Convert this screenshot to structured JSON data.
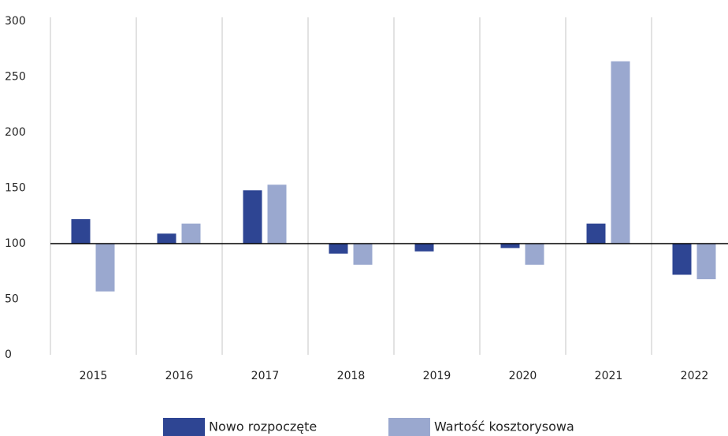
{
  "chart_data": {
    "type": "bar",
    "categories": [
      "2015",
      "2016",
      "2017",
      "2018",
      "2019",
      "2020",
      "2021",
      "2022"
    ],
    "series": [
      {
        "name": "Nowo rozpoczęte",
        "color": "#2e4593",
        "values": [
          122,
          109,
          148,
          91,
          93,
          96,
          118,
          72
        ]
      },
      {
        "name": "Wartość kosztorysowa",
        "color": "#9aa8cf",
        "values": [
          57,
          118,
          153,
          81,
          100,
          81,
          264,
          68
        ]
      }
    ],
    "baseline": 100,
    "ylim": [
      0,
      300
    ],
    "yticks": [
      0,
      50,
      100,
      150,
      200,
      250,
      300
    ],
    "grid": "x",
    "legend": "bottom"
  }
}
